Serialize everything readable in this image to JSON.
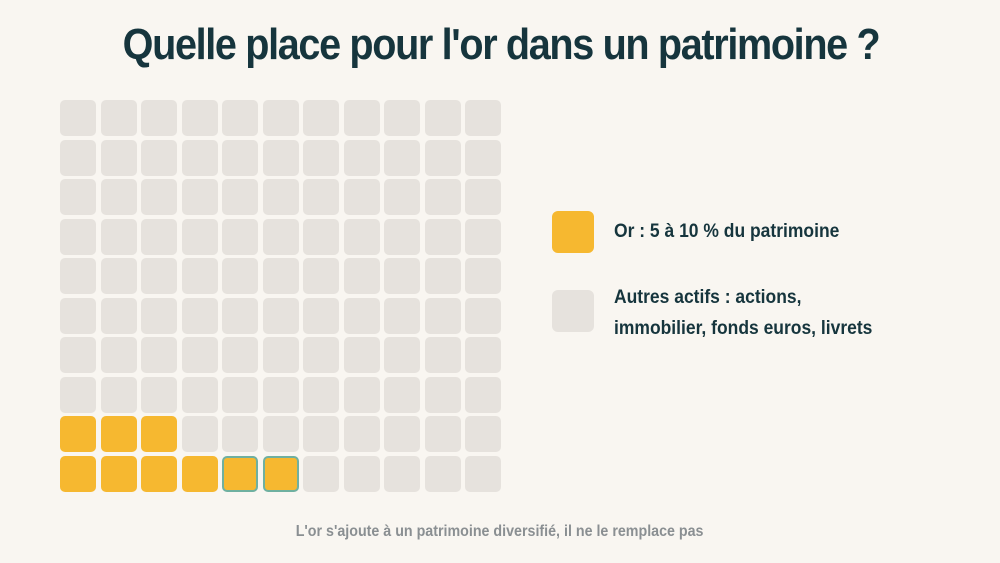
{
  "colors": {
    "background": "#f9f6f1",
    "title": "#16353d",
    "gold": "#f6b830",
    "gray": "#e6e2dd",
    "teal_outline": "#6fb0a0",
    "footer": "#8a8f92"
  },
  "chart_data": {
    "type": "waffle",
    "title": "Quelle place pour l'or dans un patrimoine ?",
    "grid": {
      "rows": 10,
      "cols": 11
    },
    "cells": [
      {
        "row": 9,
        "col": 1,
        "series": "or",
        "highlight": false
      },
      {
        "row": 9,
        "col": 2,
        "series": "or",
        "highlight": false
      },
      {
        "row": 9,
        "col": 3,
        "series": "or",
        "highlight": false
      },
      {
        "row": 10,
        "col": 1,
        "series": "or",
        "highlight": false
      },
      {
        "row": 10,
        "col": 2,
        "series": "or",
        "highlight": false
      },
      {
        "row": 10,
        "col": 3,
        "series": "or",
        "highlight": false
      },
      {
        "row": 10,
        "col": 4,
        "series": "or",
        "highlight": false
      },
      {
        "row": 10,
        "col": 5,
        "series": "or",
        "highlight": true
      },
      {
        "row": 10,
        "col": 6,
        "series": "or",
        "highlight": true
      }
    ],
    "legend": [
      {
        "series": "or",
        "label_lines": [
          "Or : 5 à 10 % du patrimoine"
        ],
        "color": "#f6b830"
      },
      {
        "series": "autres",
        "label_lines": [
          "Autres actifs : actions,",
          "immobilier, fonds euros, livrets"
        ],
        "color": "#e6e2dd"
      }
    ],
    "footnote": "L'or s'ajoute à un patrimoine diversifié, il ne le remplace pas"
  }
}
